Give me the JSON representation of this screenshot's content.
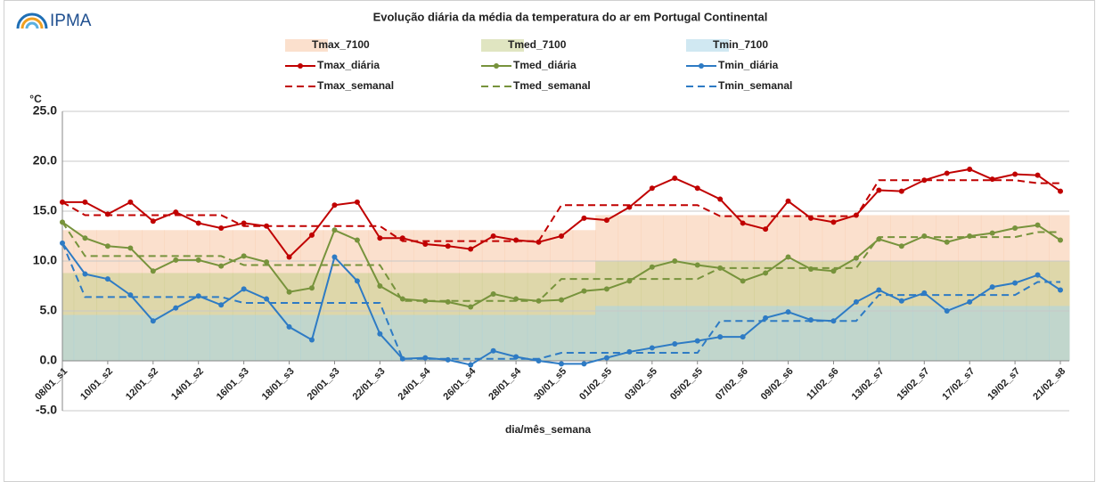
{
  "logo": {
    "name": "IPMA"
  },
  "chart_data": {
    "type": "line",
    "title": "Evolução diária da média da temperatura do ar em Portugal Continental",
    "y_label": "°C",
    "x_label": "dia/mês_semana",
    "categories": [
      "08/01_s1",
      null,
      "10/01_s2",
      null,
      "12/01_s2",
      null,
      "14/01_s2",
      null,
      "16/01_s3",
      null,
      "18/01_s3",
      null,
      "20/01_s3",
      null,
      "22/01_s3",
      null,
      "24/01_s4",
      null,
      "26/01_s4",
      null,
      "28/01_s4",
      null,
      "30/01_s5",
      null,
      "01/02_s5",
      null,
      "03/02_s5",
      null,
      "05/02_s5",
      null,
      "07/02_s6",
      null,
      "09/02_s6",
      null,
      "11/02_s6",
      null,
      "13/02_s7",
      null,
      "15/02_s7",
      null,
      "17/02_s7",
      null,
      "19/02_s7",
      null,
      "21/02_s8"
    ],
    "ylim": [
      -5,
      25
    ],
    "yticks": [
      {
        "value": -5,
        "label": "-5.0"
      },
      {
        "value": 0,
        "label": "0.0"
      },
      {
        "value": 5,
        "label": "5.0"
      },
      {
        "value": 10,
        "label": "10.0"
      },
      {
        "value": 15,
        "label": "15.0"
      },
      {
        "value": 20,
        "label": "20.0"
      },
      {
        "value": 25,
        "label": "25.0"
      }
    ],
    "grid": true,
    "series": [
      {
        "name": "Tmax_7100",
        "style": "band",
        "color": "#f7c6a4",
        "values": [
          13.1,
          13.1,
          13.1,
          13.1,
          13.1,
          13.1,
          13.1,
          13.1,
          13.1,
          13.1,
          13.1,
          13.1,
          13.1,
          13.1,
          13.1,
          13.1,
          13.1,
          13.1,
          13.1,
          13.1,
          13.1,
          13.1,
          13.1,
          13.1,
          14.6,
          14.6,
          14.6,
          14.6,
          14.6,
          14.6,
          14.6,
          14.6,
          14.6,
          14.6,
          14.6,
          14.6,
          14.6,
          14.6,
          14.6,
          14.6,
          14.6,
          14.6,
          14.6,
          14.6,
          14.6
        ]
      },
      {
        "name": "Tmed_7100",
        "style": "band",
        "color": "#c6cf8e",
        "values": [
          8.8,
          8.8,
          8.8,
          8.8,
          8.8,
          8.8,
          8.8,
          8.8,
          8.8,
          8.8,
          8.8,
          8.8,
          8.8,
          8.8,
          8.8,
          8.8,
          8.8,
          8.8,
          8.8,
          8.8,
          8.8,
          8.8,
          8.8,
          8.8,
          10.0,
          10.0,
          10.0,
          10.0,
          10.0,
          10.0,
          10.0,
          10.0,
          10.0,
          10.0,
          10.0,
          10.0,
          10.0,
          10.0,
          10.0,
          10.0,
          10.0,
          10.0,
          10.0,
          10.0,
          10.0
        ]
      },
      {
        "name": "Tmin_7100",
        "style": "band",
        "color": "#a9d5e8",
        "values": [
          4.6,
          4.6,
          4.6,
          4.6,
          4.6,
          4.6,
          4.6,
          4.6,
          4.6,
          4.6,
          4.6,
          4.6,
          4.6,
          4.6,
          4.6,
          4.6,
          4.6,
          4.6,
          4.6,
          4.6,
          4.6,
          4.6,
          4.6,
          4.6,
          5.5,
          5.5,
          5.5,
          5.5,
          5.5,
          5.5,
          5.5,
          5.5,
          5.5,
          5.5,
          5.5,
          5.5,
          5.5,
          5.5,
          5.5,
          5.5,
          5.5,
          5.5,
          5.5,
          5.5,
          5.5
        ]
      },
      {
        "name": "Tmax_diária",
        "style": "marker",
        "color": "#c00000",
        "values": [
          15.9,
          15.9,
          14.7,
          15.9,
          14.0,
          14.9,
          13.8,
          13.3,
          13.8,
          13.5,
          10.4,
          12.6,
          15.6,
          15.9,
          12.3,
          12.3,
          11.7,
          11.5,
          11.2,
          12.5,
          12.1,
          11.9,
          12.5,
          14.3,
          14.1,
          15.4,
          17.3,
          18.3,
          17.3,
          16.2,
          13.8,
          13.2,
          16.0,
          14.3,
          13.9,
          14.6,
          17.1,
          17.0,
          18.1,
          18.8,
          19.2,
          18.2,
          18.7,
          18.6,
          17.0
        ]
      },
      {
        "name": "Tmed_diária",
        "style": "marker",
        "color": "#77933c",
        "values": [
          13.9,
          12.3,
          11.5,
          11.3,
          9.0,
          10.1,
          10.1,
          9.5,
          10.5,
          9.9,
          6.9,
          7.3,
          13.1,
          12.1,
          7.5,
          6.2,
          6.0,
          5.9,
          5.4,
          6.7,
          6.2,
          6.0,
          6.1,
          7.0,
          7.2,
          8.0,
          9.4,
          10.0,
          9.6,
          9.3,
          8.0,
          8.8,
          10.4,
          9.2,
          9.0,
          10.3,
          12.2,
          11.5,
          12.5,
          11.9,
          12.5,
          12.8,
          13.3,
          13.6,
          12.1
        ]
      },
      {
        "name": "Tmin_diária",
        "style": "marker",
        "color": "#2e7bc4",
        "values": [
          11.8,
          8.7,
          8.2,
          6.6,
          4.0,
          5.3,
          6.5,
          5.6,
          7.2,
          6.2,
          3.4,
          2.1,
          10.4,
          8.0,
          2.7,
          0.2,
          0.3,
          0.1,
          -0.4,
          1.0,
          0.4,
          0.0,
          -0.3,
          -0.3,
          0.3,
          0.9,
          1.3,
          1.7,
          2.0,
          2.4,
          2.4,
          4.3,
          4.9,
          4.1,
          4.0,
          5.9,
          7.1,
          6.0,
          6.8,
          5.0,
          5.9,
          7.4,
          7.8,
          8.6,
          7.1
        ]
      },
      {
        "name": "Tmax_semanal",
        "style": "dashed",
        "color": "#c00000",
        "values": [
          15.9,
          14.6,
          14.6,
          14.6,
          14.6,
          14.6,
          14.6,
          14.6,
          13.5,
          13.5,
          13.5,
          13.5,
          13.5,
          13.5,
          13.5,
          12.0,
          12.0,
          12.0,
          12.0,
          12.0,
          12.0,
          12.0,
          15.6,
          15.6,
          15.6,
          15.6,
          15.6,
          15.6,
          15.6,
          14.5,
          14.5,
          14.5,
          14.5,
          14.5,
          14.5,
          14.5,
          18.1,
          18.1,
          18.1,
          18.1,
          18.1,
          18.1,
          18.1,
          17.8,
          17.8
        ]
      },
      {
        "name": "Tmed_semanal",
        "style": "dashed",
        "color": "#77933c",
        "values": [
          13.9,
          10.5,
          10.5,
          10.5,
          10.5,
          10.5,
          10.5,
          10.5,
          9.6,
          9.6,
          9.6,
          9.6,
          9.6,
          9.6,
          9.6,
          6.0,
          6.0,
          6.0,
          6.0,
          6.0,
          6.0,
          6.0,
          8.2,
          8.2,
          8.2,
          8.2,
          8.2,
          8.2,
          8.2,
          9.3,
          9.3,
          9.3,
          9.3,
          9.3,
          9.3,
          9.3,
          12.4,
          12.4,
          12.4,
          12.4,
          12.4,
          12.4,
          12.4,
          12.9,
          12.9
        ]
      },
      {
        "name": "Tmin_semanal",
        "style": "dashed",
        "color": "#2e7bc4",
        "values": [
          11.8,
          6.4,
          6.4,
          6.4,
          6.4,
          6.4,
          6.4,
          6.4,
          5.8,
          5.8,
          5.8,
          5.8,
          5.8,
          5.8,
          5.8,
          0.2,
          0.2,
          0.2,
          0.2,
          0.2,
          0.2,
          0.2,
          0.8,
          0.8,
          0.8,
          0.8,
          0.8,
          0.8,
          0.8,
          4.0,
          4.0,
          4.0,
          4.0,
          4.0,
          4.0,
          4.0,
          6.6,
          6.6,
          6.6,
          6.6,
          6.6,
          6.6,
          6.6,
          7.9,
          7.9
        ]
      }
    ]
  }
}
